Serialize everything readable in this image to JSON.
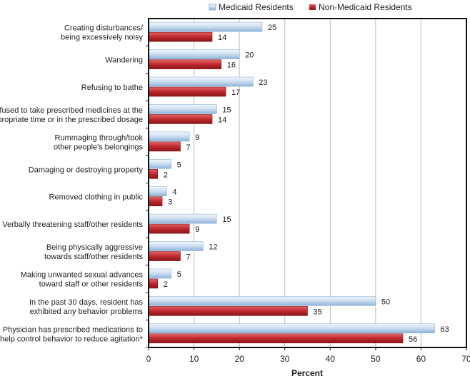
{
  "chart_data": {
    "type": "bar",
    "orientation": "horizontal",
    "title": "",
    "xlabel": "Percent",
    "ylabel": "",
    "xlim": [
      0,
      70
    ],
    "xticks": [
      0,
      10,
      20,
      30,
      40,
      50,
      60,
      70
    ],
    "grid": true,
    "legend_position": "top",
    "categories": [
      [
        "Creating disturbances/",
        "being excessively noisy"
      ],
      [
        "Wandering"
      ],
      [
        "Refusing to bathe"
      ],
      [
        "Refused to take prescribed medicines at the",
        "appropriate time or in the prescribed dosage"
      ],
      [
        "Rummaging through/took",
        "other people's belongings"
      ],
      [
        "Damaging or destroying property"
      ],
      [
        "Removed clothing in public"
      ],
      [
        "Verbally threatening staff/other residents"
      ],
      [
        "Being physically aggressive",
        "towards staff/other residents"
      ],
      [
        "Making unwanted sexual advances",
        "toward staff or other residents"
      ],
      [
        "In the past 30 days, resident has",
        "exhibited any behavior problems"
      ],
      [
        "Physician has prescribed medications to",
        "help control behavior to reduce agitation*"
      ]
    ],
    "series": [
      {
        "name": "Medicaid Residents",
        "color": "#c9dcef",
        "values": [
          25,
          20,
          23,
          15,
          9,
          5,
          4,
          15,
          12,
          5,
          50,
          63
        ]
      },
      {
        "name": "Non-Medicaid Residents",
        "color": "#c0282d",
        "values": [
          14,
          16,
          17,
          14,
          7,
          2,
          3,
          9,
          7,
          2,
          35,
          56
        ]
      }
    ]
  }
}
